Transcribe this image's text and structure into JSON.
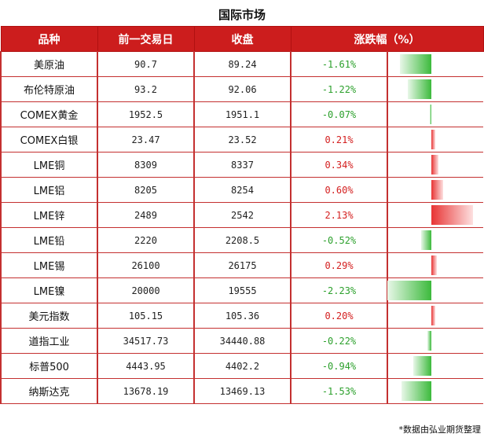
{
  "title": "国际市场",
  "headers": [
    "品种",
    "前一交易日",
    "收盘",
    "涨跌幅（%）"
  ],
  "rows": [
    {
      "name": "美原油",
      "prev": "90.7",
      "close": "89.24",
      "change": "-1.61%",
      "pct": -1.61
    },
    {
      "name": "布伦特原油",
      "prev": "93.2",
      "close": "92.06",
      "change": "-1.22%",
      "pct": -1.22
    },
    {
      "name": "COMEX黄金",
      "prev": "1952.5",
      "close": "1951.1",
      "change": "-0.07%",
      "pct": -0.07
    },
    {
      "name": "COMEX白银",
      "prev": "23.47",
      "close": "23.52",
      "change": "0.21%",
      "pct": 0.21
    },
    {
      "name": "LME铜",
      "prev": "8309",
      "close": "8337",
      "change": "0.34%",
      "pct": 0.34
    },
    {
      "name": "LME铝",
      "prev": "8205",
      "close": "8254",
      "change": "0.60%",
      "pct": 0.6
    },
    {
      "name": "LME锌",
      "prev": "2489",
      "close": "2542",
      "change": "2.13%",
      "pct": 2.13
    },
    {
      "name": "LME铅",
      "prev": "2220",
      "close": "2208.5",
      "change": "-0.52%",
      "pct": -0.52
    },
    {
      "name": "LME锡",
      "prev": "26100",
      "close": "26175",
      "change": "0.29%",
      "pct": 0.29
    },
    {
      "name": "LME镍",
      "prev": "20000",
      "close": "19555",
      "change": "-2.23%",
      "pct": -2.23
    },
    {
      "name": "美元指数",
      "prev": "105.15",
      "close": "105.36",
      "change": "0.20%",
      "pct": 0.2
    },
    {
      "name": "道指工业",
      "prev": "34517.73",
      "close": "34440.88",
      "change": "-0.22%",
      "pct": -0.22
    },
    {
      "name": "标普500",
      "prev": "4443.95",
      "close": "4402.2",
      "change": "-0.94%",
      "pct": -0.94
    },
    {
      "name": "纳斯达克",
      "prev": "13678.19",
      "close": "13469.13",
      "change": "-1.53%",
      "pct": -1.53
    }
  ],
  "colors": {
    "header_bg": "#cc1d1d",
    "up": "#e83434",
    "down": "#3cba3c"
  },
  "footnote": "*数据由弘业期货整理"
}
